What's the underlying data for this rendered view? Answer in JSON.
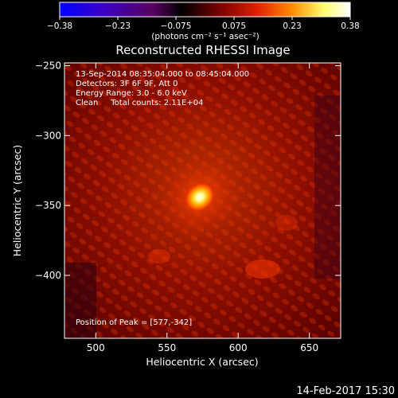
{
  "chart_data": {
    "type": "heatmap",
    "title": "Reconstructed RHESSI Image",
    "xlabel": "Heliocentric X (arcsec)",
    "ylabel": "Heliocentric Y (arcsec)",
    "xlim": [
      478,
      672
    ],
    "ylim": [
      -445,
      -248
    ],
    "xticks": [
      500,
      550,
      600,
      650
    ],
    "yticks": [
      -250,
      -300,
      -350,
      -400
    ],
    "colorbar": {
      "min": -0.38,
      "max": 0.38,
      "ticks": [
        "-0.38",
        "-0.23",
        "-0.075",
        "0.075",
        "0.23",
        "0.38"
      ],
      "label": "(photons cm⁻² s⁻¹ asec⁻²)"
    },
    "annotations": [
      "13-Sep-2014 08:35:04.000 to 08:45:04.000",
      "Detectors: 3F 6F 9F, Att 0",
      "Energy Range: 3.0 - 6.0 keV",
      "Clean     Total counts: 2.11E+04"
    ],
    "peak_label": "Position of Peak = [577,-342]",
    "peak": {
      "x": 577,
      "y": -342
    },
    "source_extent": {
      "x": [
        563,
        583
      ],
      "y": [
        -355,
        -333
      ]
    },
    "colors": {
      "colormap": [
        "#0000ff",
        "#4b00a0",
        "#000000",
        "#7a0000",
        "#e02000",
        "#ff8c00",
        "#ffff80",
        "#ffffff"
      ]
    }
  },
  "footer": {
    "date": "14-Feb-2017 15:30"
  }
}
